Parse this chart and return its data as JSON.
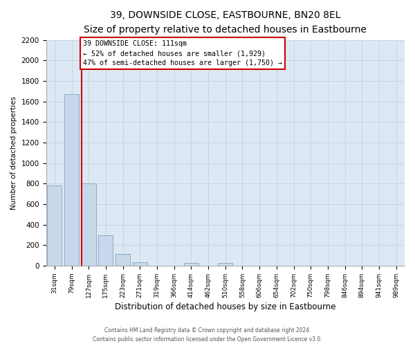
{
  "title": "39, DOWNSIDE CLOSE, EASTBOURNE, BN20 8EL",
  "subtitle": "Size of property relative to detached houses in Eastbourne",
  "xlabel": "Distribution of detached houses by size in Eastbourne",
  "ylabel": "Number of detached properties",
  "bar_labels": [
    "31sqm",
    "79sqm",
    "127sqm",
    "175sqm",
    "223sqm",
    "271sqm",
    "319sqm",
    "366sqm",
    "414sqm",
    "462sqm",
    "510sqm",
    "558sqm",
    "606sqm",
    "654sqm",
    "702sqm",
    "750sqm",
    "798sqm",
    "846sqm",
    "894sqm",
    "941sqm",
    "989sqm"
  ],
  "bar_values": [
    780,
    1675,
    800,
    295,
    115,
    35,
    0,
    0,
    30,
    0,
    25,
    0,
    0,
    0,
    0,
    0,
    0,
    0,
    0,
    0,
    0
  ],
  "bar_color": "#c8d8ea",
  "bar_edge_color": "#8aaac8",
  "property_line_x": 1.57,
  "property_line_color": "#cc0000",
  "annotation_title": "39 DOWNSIDE CLOSE: 111sqm",
  "annotation_line1": "← 52% of detached houses are smaller (1,929)",
  "annotation_line2": "47% of semi-detached houses are larger (1,750) →",
  "annotation_box_color": "#ffffff",
  "annotation_box_edge": "#cc0000",
  "ylim": [
    0,
    2200
  ],
  "yticks": [
    0,
    200,
    400,
    600,
    800,
    1000,
    1200,
    1400,
    1600,
    1800,
    2000,
    2200
  ],
  "footer_line1": "Contains HM Land Registry data © Crown copyright and database right 2024.",
  "footer_line2": "Contains public sector information licensed under the Open Government Licence v3.0.",
  "grid_color": "#c8d4e0",
  "bg_color": "#dce8f4"
}
